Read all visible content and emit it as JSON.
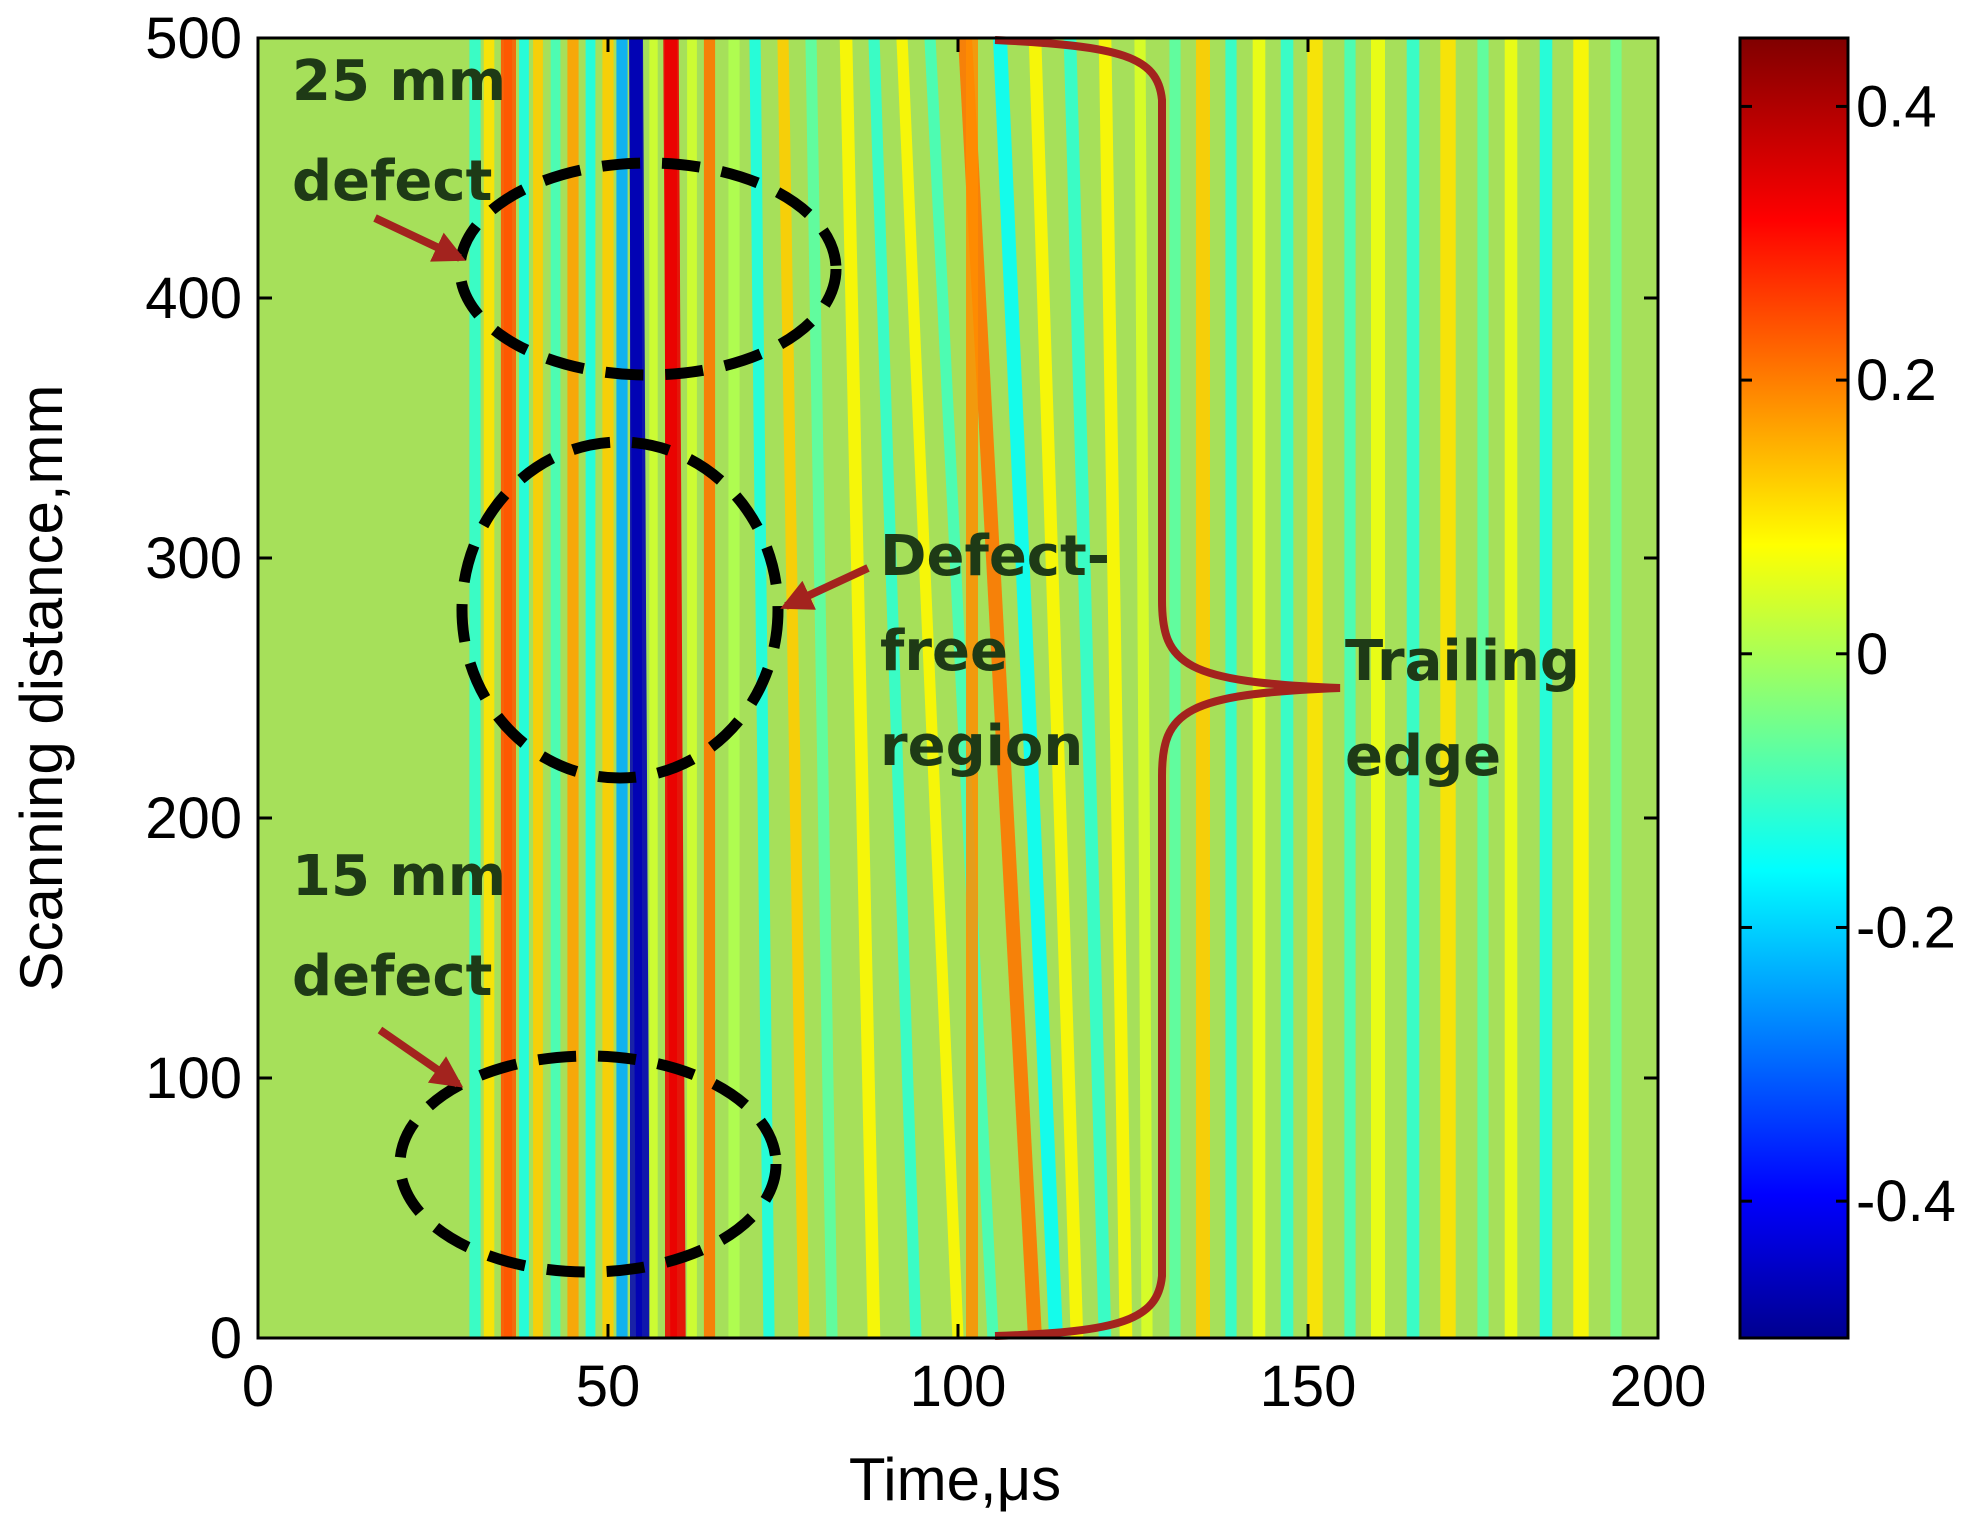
{
  "chart_data": {
    "type": "heatmap",
    "title": "",
    "xlabel": "Time,μs",
    "ylabel": "Scanning distance,mm",
    "xlim": [
      0,
      200
    ],
    "ylim": [
      0,
      500
    ],
    "xticks": [
      "0",
      "50",
      "100",
      "150",
      "200"
    ],
    "yticks": [
      "0",
      "100",
      "200",
      "300",
      "400",
      "500"
    ],
    "colorbar": {
      "range": [
        -0.5,
        0.45
      ],
      "ticks": [
        "0.4",
        "0.2",
        "0",
        "-0.2",
        "-0.4"
      ],
      "colormap": "jet",
      "placement": "right"
    },
    "grid": false,
    "dominant_features": [
      {
        "time_us": 54,
        "amplitude": -0.45,
        "kind": "main negative arrival"
      },
      {
        "time_us": 59,
        "amplitude": 0.35,
        "kind": "main positive arrival"
      },
      {
        "time_us": 36,
        "amplitude": 0.25,
        "kind": "early positive band"
      },
      {
        "time_us": 102,
        "amplitude": 0.2,
        "kind": "late arrival curving from ~97 to 108 us"
      }
    ],
    "annotations": {
      "defect_25": {
        "line1": "25 mm",
        "line2": "defect"
      },
      "defect_15": {
        "line1": "15 mm",
        "line2": "defect"
      },
      "defect_free": {
        "line1": "Defect-",
        "line2": "free",
        "line3": "region"
      },
      "trailing_edge": {
        "line1": "Trailing",
        "line2": "edge"
      }
    }
  },
  "colors": {
    "annotation_text": "#1e3a16",
    "arrow": "#a3231e",
    "ellipse": "#000000",
    "background_field": "#a6e05a"
  }
}
